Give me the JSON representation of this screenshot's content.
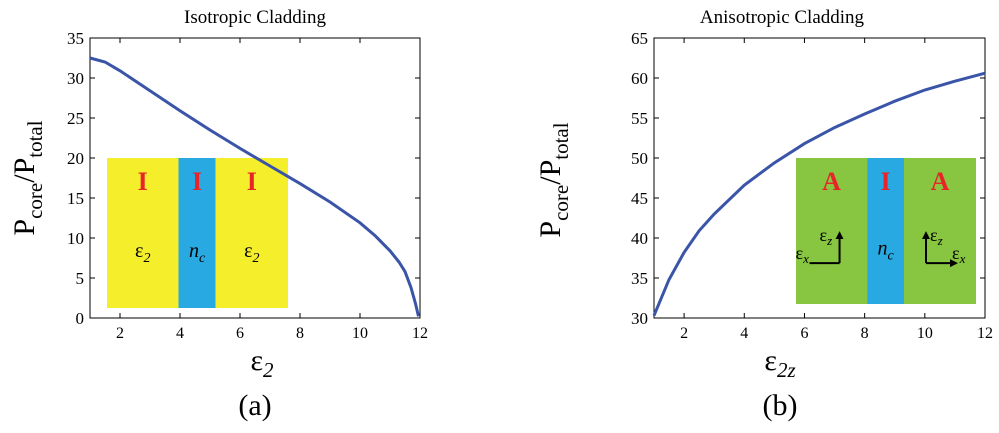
{
  "chart_data": [
    {
      "type": "line",
      "panel_label": "(a)",
      "title": "Isotropic Cladding",
      "xlabel": {
        "main": "ε",
        "sub": "2"
      },
      "ylabel": {
        "p1": "P",
        "s1": "core",
        "mid": "/P",
        "s2": "total"
      },
      "xlim": [
        1,
        12
      ],
      "ylim": [
        0,
        35
      ],
      "xticks": [
        2,
        4,
        6,
        8,
        10,
        12
      ],
      "yticks": [
        0,
        5,
        10,
        15,
        20,
        25,
        30,
        35
      ],
      "grid": false,
      "series": [
        {
          "color": "#3a55a8",
          "x": [
            1,
            1.5,
            2,
            3,
            4,
            5,
            6,
            7,
            8,
            9,
            10,
            10.5,
            11,
            11.3,
            11.5,
            11.7,
            11.85,
            11.95
          ],
          "y": [
            32.5,
            32.0,
            30.9,
            28.4,
            25.9,
            23.5,
            21.2,
            19.0,
            16.8,
            14.5,
            11.9,
            10.3,
            8.4,
            7.0,
            5.8,
            3.8,
            1.8,
            0.2
          ]
        }
      ],
      "inset": {
        "layers": [
          {
            "tag": "I",
            "symbol": "ε",
            "sub": "2",
            "fill": "#f5ee2a"
          },
          {
            "tag": "I",
            "symbol": "n",
            "sub": "c",
            "fill": "#29a9e1"
          },
          {
            "tag": "I",
            "symbol": "ε",
            "sub": "2",
            "fill": "#f5ee2a"
          }
        ],
        "tag_color": "#e8232a"
      }
    },
    {
      "type": "line",
      "panel_label": "(b)",
      "title": "Anisotropic Cladding",
      "xlabel": {
        "main": "ε",
        "sub": "2z"
      },
      "ylabel": {
        "p1": "P",
        "s1": "core",
        "mid": "/P",
        "s2": "total"
      },
      "xlim": [
        1,
        12
      ],
      "ylim": [
        30,
        65
      ],
      "xticks": [
        2,
        4,
        6,
        8,
        10,
        12
      ],
      "yticks": [
        30,
        35,
        40,
        45,
        50,
        55,
        60,
        65
      ],
      "grid": false,
      "series": [
        {
          "color": "#3a55a8",
          "x": [
            1,
            1.5,
            2,
            2.5,
            3,
            4,
            5,
            6,
            7,
            8,
            9,
            10,
            11,
            12
          ],
          "y": [
            30.3,
            34.8,
            38.2,
            40.9,
            43.0,
            46.6,
            49.4,
            51.8,
            53.8,
            55.5,
            57.1,
            58.5,
            59.6,
            60.6
          ]
        }
      ],
      "inset": {
        "layers": [
          {
            "tag": "A",
            "fill": "#88c540",
            "axes": {
              "z": "ε",
              "zs": "z",
              "x": "ε",
              "xs": "x",
              "xdir": "left"
            }
          },
          {
            "tag": "I",
            "symbol": "n",
            "sub": "c",
            "fill": "#29a9e1"
          },
          {
            "tag": "A",
            "fill": "#88c540",
            "axes": {
              "z": "ε",
              "zs": "z",
              "x": "ε",
              "xs": "x",
              "xdir": "right"
            }
          }
        ],
        "tag_color": "#e8232a"
      }
    }
  ]
}
